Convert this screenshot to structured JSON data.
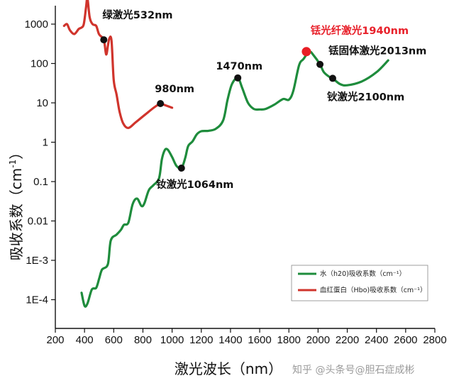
{
  "chart_data": {
    "type": "line",
    "xlabel": "激光波长（nm）",
    "ylabel": "吸收系数（cm-1）",
    "xlim": [
      200,
      2800
    ],
    "ylim_log10": [
      -5,
      0
    ],
    "x_ticks": [
      "200",
      "400",
      "600",
      "800",
      "1000",
      "1200",
      "1400",
      "1600",
      "1800",
      "2000",
      "2200",
      "2400",
      "2600",
      "2800"
    ],
    "y_ticks": [
      "1000",
      "100",
      "10",
      "1",
      "0.1",
      "0.01",
      "1E-3",
      "1E-4"
    ],
    "grid": false,
    "legend_position": "bottom-right",
    "series": [
      {
        "name": "水（h20)吸收系数（cm⁻¹）",
        "color": "#1e8c3c",
        "points": [
          [
            380,
            0.00015
          ],
          [
            400,
            7e-05
          ],
          [
            420,
            8e-05
          ],
          [
            450,
            0.00018
          ],
          [
            480,
            0.0002
          ],
          [
            500,
            0.00034
          ],
          [
            520,
            0.00058
          ],
          [
            560,
            0.0008
          ],
          [
            580,
            0.0032
          ],
          [
            620,
            0.0045
          ],
          [
            650,
            0.006
          ],
          [
            670,
            0.008
          ],
          [
            700,
            0.009
          ],
          [
            730,
            0.027
          ],
          [
            760,
            0.037
          ],
          [
            790,
            0.024
          ],
          [
            810,
            0.028
          ],
          [
            840,
            0.06
          ],
          [
            870,
            0.08
          ],
          [
            910,
            0.12
          ],
          [
            930,
            0.37
          ],
          [
            950,
            0.63
          ],
          [
            970,
            0.65
          ],
          [
            1000,
            0.42
          ],
          [
            1030,
            0.25
          ],
          [
            1064,
            0.22
          ],
          [
            1090,
            0.4
          ],
          [
            1110,
            0.8
          ],
          [
            1140,
            1.05
          ],
          [
            1170,
            1.6
          ],
          [
            1200,
            1.9
          ],
          [
            1250,
            1.95
          ],
          [
            1300,
            2.2
          ],
          [
            1350,
            3.6
          ],
          [
            1380,
            12
          ],
          [
            1410,
            30
          ],
          [
            1450,
            43
          ],
          [
            1480,
            24
          ],
          [
            1520,
            10
          ],
          [
            1560,
            7
          ],
          [
            1600,
            6.8
          ],
          [
            1640,
            7
          ],
          [
            1700,
            9
          ],
          [
            1760,
            12.5
          ],
          [
            1800,
            12
          ],
          [
            1830,
            20
          ],
          [
            1870,
            90
          ],
          [
            1900,
            130
          ],
          [
            1940,
            200
          ],
          [
            1970,
            160
          ],
          [
            2013,
            95
          ],
          [
            2040,
            60
          ],
          [
            2080,
            45
          ],
          [
            2100,
            42
          ],
          [
            2150,
            30
          ],
          [
            2200,
            28
          ],
          [
            2300,
            35
          ],
          [
            2400,
            60
          ],
          [
            2480,
            120
          ]
        ]
      },
      {
        "name": "血红蛋白（Hbo)吸收系数（cm⁻¹）",
        "color": "#d0342c",
        "points": [
          [
            260,
            900
          ],
          [
            280,
            1000
          ],
          [
            300,
            700
          ],
          [
            330,
            560
          ],
          [
            360,
            750
          ],
          [
            380,
            820
          ],
          [
            395,
            1000
          ],
          [
            410,
            2600
          ],
          [
            420,
            4500
          ],
          [
            435,
            1500
          ],
          [
            455,
            1000
          ],
          [
            480,
            900
          ],
          [
            500,
            550
          ],
          [
            532,
            400
          ],
          [
            548,
            170
          ],
          [
            560,
            280
          ],
          [
            570,
            430
          ],
          [
            585,
            380
          ],
          [
            600,
            38
          ],
          [
            620,
            16
          ],
          [
            640,
            6
          ],
          [
            665,
            3
          ],
          [
            700,
            2.3
          ],
          [
            750,
            3.2
          ],
          [
            820,
            5.2
          ],
          [
            880,
            7.8
          ],
          [
            920,
            9.4
          ],
          [
            960,
            8.5
          ],
          [
            1000,
            7.5
          ]
        ]
      }
    ],
    "markers": [
      {
        "label": "绿激光532nm",
        "x": 532,
        "y": 400,
        "color": "#111111"
      },
      {
        "label": "980nm",
        "x": 920,
        "y": 9.6,
        "color": "#111111"
      },
      {
        "label": "钕激光1064nm",
        "x": 1064,
        "y": 0.22,
        "color": "#111111"
      },
      {
        "label": "1470nm",
        "x": 1450,
        "y": 43,
        "color": "#111111"
      },
      {
        "label": "铥光纤激光1940nm",
        "x": 1920,
        "y": 200,
        "color": "#e81e25"
      },
      {
        "label": "铥固体激光2013nm",
        "x": 2013,
        "y": 95,
        "color": "#111111"
      },
      {
        "label": "钬激光2100nm",
        "x": 2100,
        "y": 42,
        "color": "#111111"
      }
    ]
  },
  "ylabel_main": "吸收系数（cm",
  "ylabel_sup": "-1",
  "ylabel_close": "）",
  "watermark": "知乎 @头条号@胆石症成彬"
}
